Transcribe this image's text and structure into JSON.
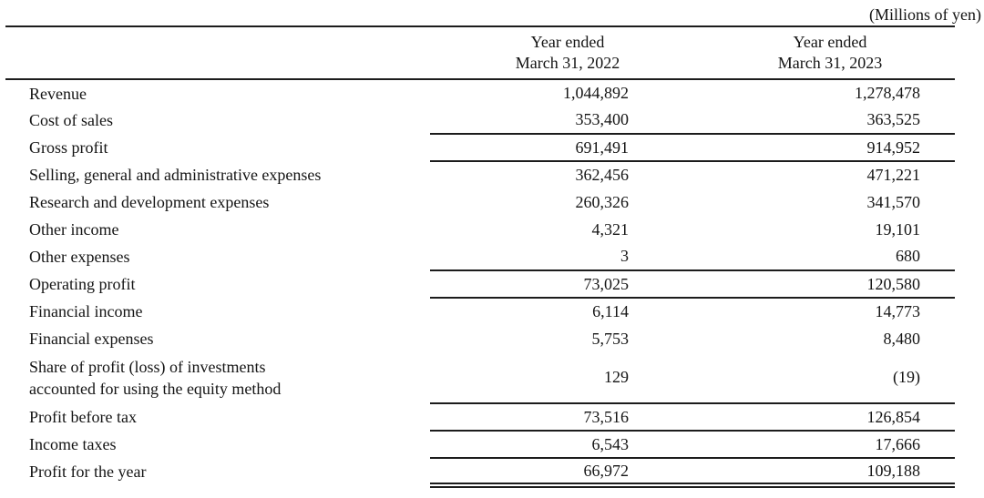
{
  "note": "(Millions of yen)",
  "columns": [
    {
      "line1": "Year ended",
      "line2": "March 31, 2022"
    },
    {
      "line1": "Year ended",
      "line2": "March 31, 2023"
    }
  ],
  "rows": [
    {
      "label": "Revenue",
      "fy2022": "1,044,892",
      "fy2023": "1,278,478"
    },
    {
      "label": "Cost of sales",
      "fy2022": "353,400",
      "fy2023": "363,525"
    },
    {
      "label": "Gross profit",
      "fy2022": "691,491",
      "fy2023": "914,952"
    },
    {
      "label": "Selling, general and administrative expenses",
      "fy2022": "362,456",
      "fy2023": "471,221"
    },
    {
      "label": "Research and development expenses",
      "fy2022": "260,326",
      "fy2023": "341,570"
    },
    {
      "label": "Other income",
      "fy2022": "4,321",
      "fy2023": "19,101"
    },
    {
      "label": "Other expenses",
      "fy2022": "3",
      "fy2023": "680"
    },
    {
      "label": "Operating profit",
      "fy2022": "73,025",
      "fy2023": "120,580"
    },
    {
      "label": "Financial income",
      "fy2022": "6,114",
      "fy2023": "14,773"
    },
    {
      "label": "Financial expenses",
      "fy2022": "5,753",
      "fy2023": "8,480"
    },
    {
      "label": "Share of profit (loss) of investments",
      "label2": "accounted for using the equity method",
      "fy2022": "129",
      "fy2023": "(19)"
    },
    {
      "label": "Profit before tax",
      "fy2022": "73,516",
      "fy2023": "126,854"
    },
    {
      "label": "Income taxes",
      "fy2022": "6,543",
      "fy2023": "17,666"
    },
    {
      "label": "Profit for the year",
      "fy2022": "66,972",
      "fy2023": "109,188"
    }
  ]
}
